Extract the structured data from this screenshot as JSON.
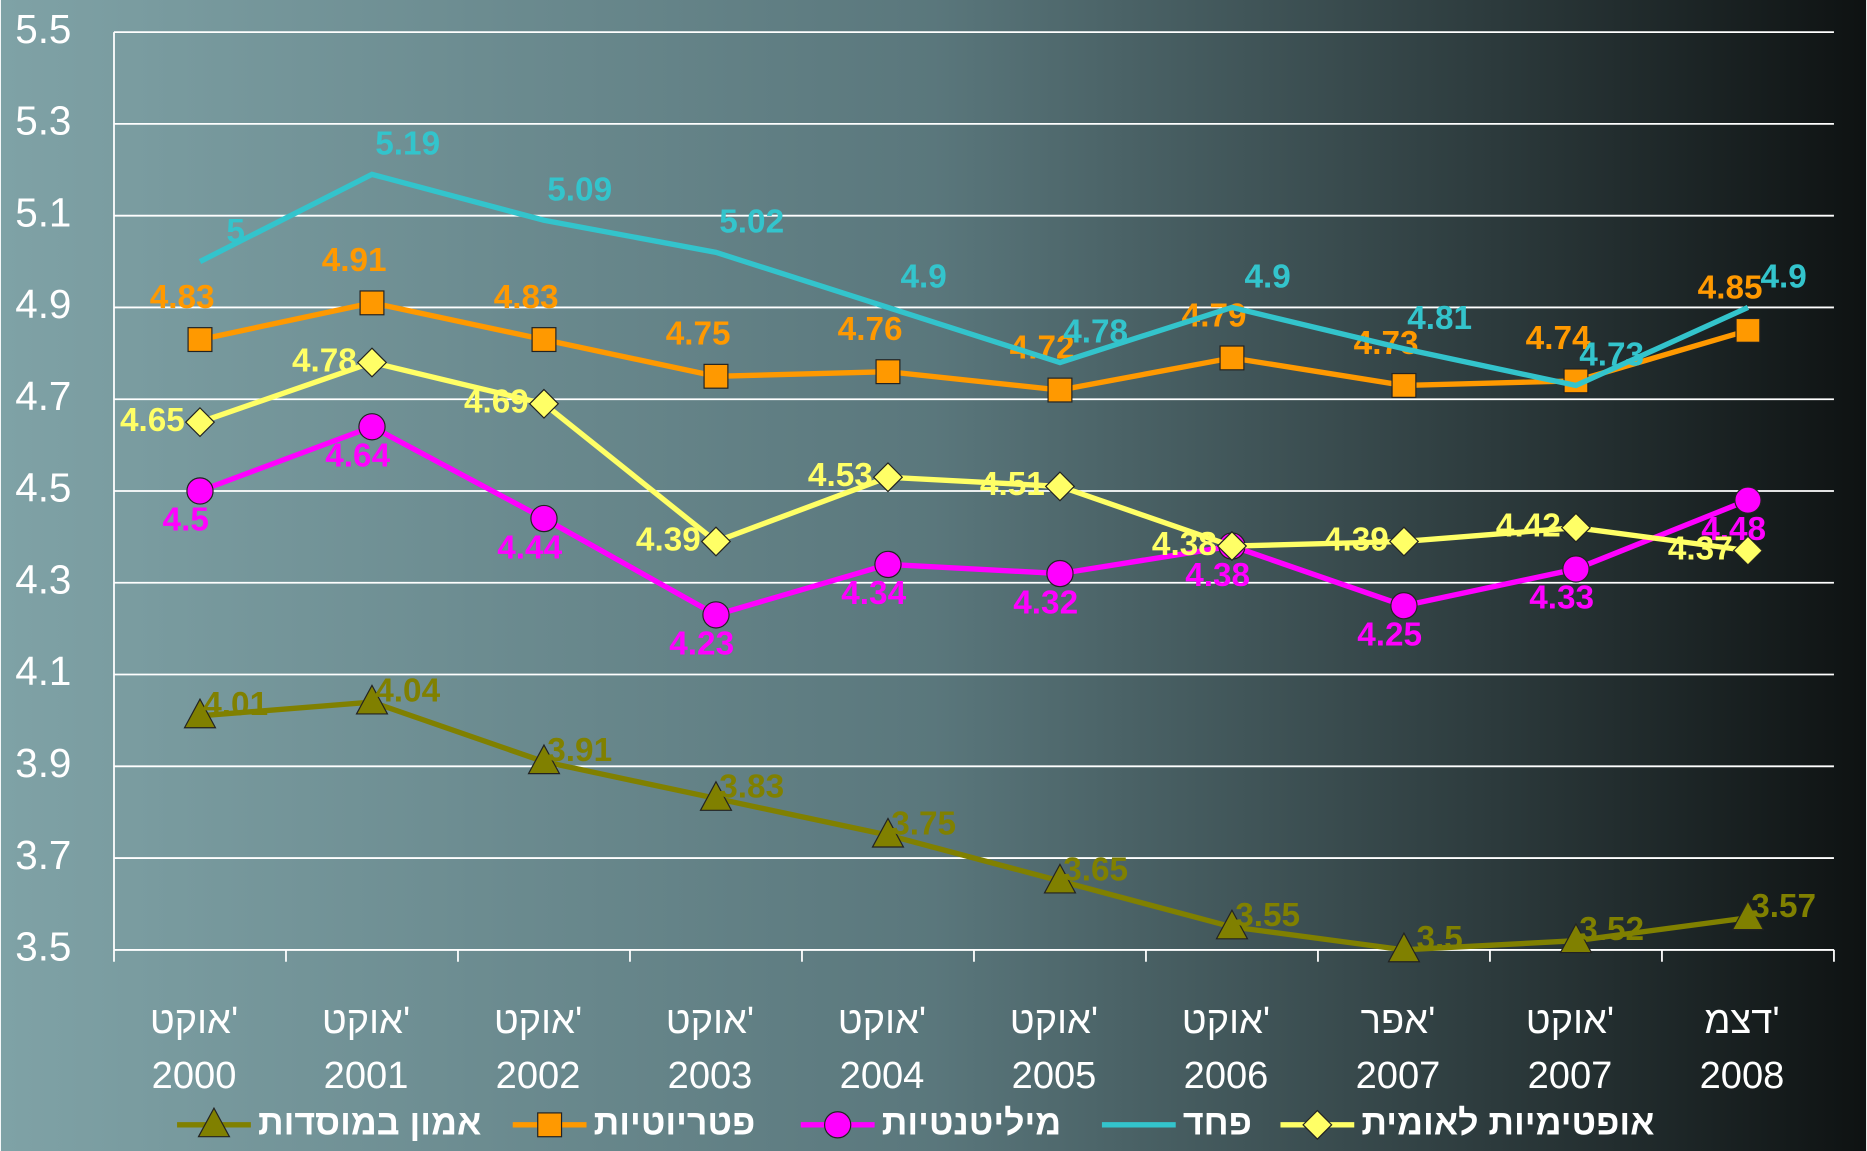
{
  "chart_data": {
    "type": "line",
    "categories": [
      "אוקט' 2000",
      "אוקט' 2001",
      "אוקט' 2002",
      "אוקט' 2003",
      "אוקט' 2004",
      "אוקט' 2005",
      "אוקט' 2006",
      "אפר' 2007",
      "אוקט' 2007",
      "דצמ' 2008"
    ],
    "ylim": [
      3.5,
      5.5
    ],
    "yticks": [
      3.5,
      3.7,
      3.9,
      4.1,
      4.3,
      4.5,
      4.7,
      4.9,
      5.1,
      5.3,
      5.5
    ],
    "grid": true,
    "legend": "bottom",
    "series": [
      {
        "name": "אמון במוסדות",
        "color": "#808000",
        "marker": "triangle",
        "values": [
          4.01,
          4.04,
          3.91,
          3.83,
          3.75,
          3.65,
          3.55,
          3.5,
          3.52,
          3.57
        ]
      },
      {
        "name": "פטריוטיות",
        "color": "#ff9900",
        "marker": "square",
        "values": [
          4.83,
          4.91,
          4.83,
          4.75,
          4.76,
          4.72,
          4.79,
          4.73,
          4.74,
          4.85
        ]
      },
      {
        "name": "מיליטנטיות",
        "color": "#ff00ff",
        "marker": "circle",
        "values": [
          4.5,
          4.64,
          4.44,
          4.23,
          4.34,
          4.32,
          4.38,
          4.25,
          4.33,
          4.48
        ]
      },
      {
        "name": "פחד",
        "color": "#33c4cc",
        "marker": "none",
        "values": [
          5,
          5.19,
          5.09,
          5.02,
          4.9,
          4.78,
          4.9,
          4.81,
          4.73,
          4.9
        ]
      },
      {
        "name": "אופטימיות לאומית",
        "color": "#ffff66",
        "marker": "diamond",
        "values": [
          4.65,
          4.78,
          4.69,
          4.39,
          4.53,
          4.51,
          4.38,
          4.39,
          4.42,
          4.37
        ]
      }
    ]
  }
}
